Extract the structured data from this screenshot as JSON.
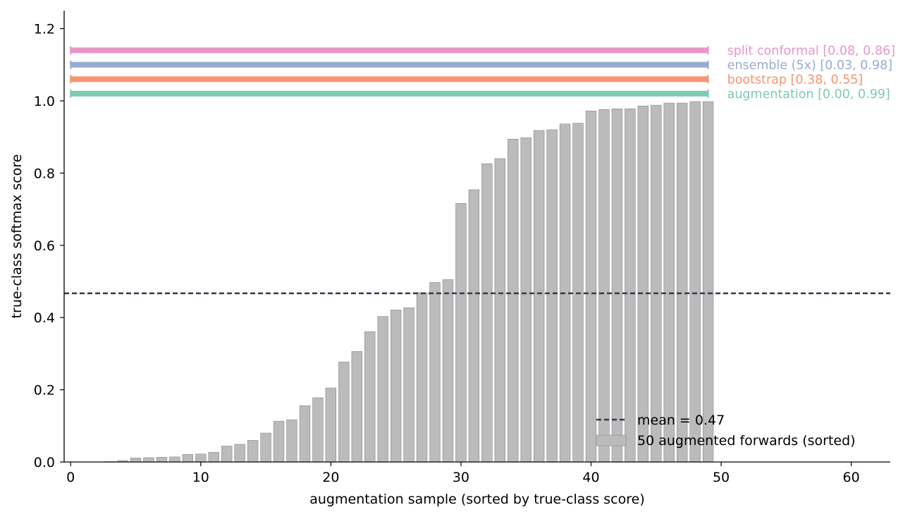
{
  "chart_data": {
    "type": "bar",
    "title": "",
    "xlabel": "augmentation sample (sorted by true-class score)",
    "ylabel": "true-class softmax score",
    "xlim": [
      -0.5,
      63
    ],
    "ylim": [
      0,
      1.25
    ],
    "xticks": [
      0,
      10,
      20,
      30,
      40,
      50,
      60
    ],
    "yticks": [
      0.0,
      0.2,
      0.4,
      0.6,
      0.8,
      1.0,
      1.2
    ],
    "xtick_labels": [
      "0",
      "10",
      "20",
      "30",
      "40",
      "50",
      "60"
    ],
    "ytick_labels": [
      "0.0",
      "0.2",
      "0.4",
      "0.6",
      "0.8",
      "1.0",
      "1.2"
    ],
    "grid": false,
    "series": [
      {
        "name": "50 augmented forwards (sorted)",
        "color": "#bbbbbb",
        "edge_color": "#888888",
        "x": [
          0,
          1,
          2,
          3,
          4,
          5,
          6,
          7,
          8,
          9,
          10,
          11,
          12,
          13,
          14,
          15,
          16,
          17,
          18,
          19,
          20,
          21,
          22,
          23,
          24,
          25,
          26,
          27,
          28,
          29,
          30,
          31,
          32,
          33,
          34,
          35,
          36,
          37,
          38,
          39,
          40,
          41,
          42,
          43,
          44,
          45,
          46,
          47,
          48,
          49
        ],
        "values": [
          0.0,
          0.0,
          0.0,
          0.001,
          0.004,
          0.011,
          0.012,
          0.013,
          0.014,
          0.021,
          0.022,
          0.027,
          0.044,
          0.049,
          0.06,
          0.08,
          0.113,
          0.117,
          0.156,
          0.178,
          0.205,
          0.277,
          0.306,
          0.361,
          0.403,
          0.421,
          0.427,
          0.469,
          0.497,
          0.505,
          0.716,
          0.754,
          0.826,
          0.84,
          0.894,
          0.898,
          0.918,
          0.92,
          0.936,
          0.938,
          0.972,
          0.976,
          0.978,
          0.978,
          0.986,
          0.988,
          0.994,
          0.994,
          0.998,
          0.998
        ]
      }
    ],
    "mean_line": {
      "value": 0.467,
      "label": "mean = 0.47",
      "color": "#2f3e4e"
    },
    "intervals": [
      {
        "label": "split conformal  [0.08, 0.86]",
        "y": 1.14,
        "x_start": 0,
        "x_end": 49,
        "color": "#e896c8"
      },
      {
        "label": "ensemble (5x)  [0.03, 0.98]",
        "y": 1.1,
        "x_start": 0,
        "x_end": 49,
        "color": "#9aaad0"
      },
      {
        "label": "bootstrap  [0.38, 0.55]",
        "y": 1.06,
        "x_start": 0,
        "x_end": 49,
        "color": "#f5956e"
      },
      {
        "label": "augmentation  [0.00, 0.99]",
        "y": 1.02,
        "x_start": 0,
        "x_end": 49,
        "color": "#7fcab0"
      }
    ],
    "legend": {
      "position": "lower-right",
      "entries": [
        "mean = 0.47",
        "50 augmented forwards (sorted)"
      ]
    }
  }
}
